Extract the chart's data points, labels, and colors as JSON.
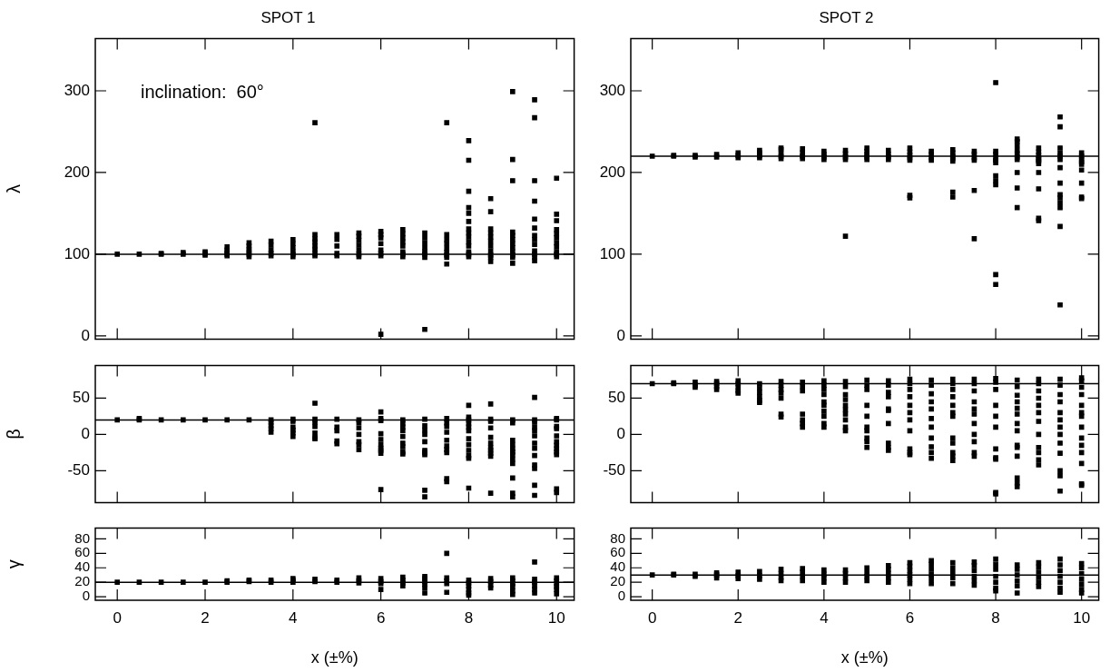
{
  "chart_data": [
    {
      "type": "scatter",
      "marker": "square",
      "title": "SPOT 1",
      "ylabel": "λ",
      "annotations": [
        "inclination:  60°"
      ],
      "xlim": [
        -0.5,
        10.4
      ],
      "xticks": [
        0,
        2,
        4,
        6,
        8,
        10
      ],
      "ylim": [
        -4,
        364
      ],
      "yticks": [
        0,
        100,
        200,
        300
      ],
      "tick_labels": "y",
      "ref_lines": [
        {
          "axis": "y",
          "value": 100,
          "color": "#000000"
        }
      ],
      "color": "#000000",
      "x": [
        0,
        0.5,
        1,
        1,
        1.5,
        1.5,
        2,
        2,
        2,
        2.5,
        2.5,
        2.5,
        2.5,
        2.5,
        3,
        3,
        3,
        3,
        3,
        3,
        3.5,
        3.5,
        3.5,
        3.5,
        3.5,
        4,
        4,
        4,
        4,
        4,
        4,
        4.5,
        4.5,
        4.5,
        4.5,
        4.5,
        4.5,
        4.5,
        4.5,
        5,
        5,
        5,
        5,
        5,
        5.5,
        5.5,
        5.5,
        5.5,
        5.5,
        5.5,
        5.5,
        6,
        6,
        6,
        6,
        6,
        6,
        6,
        6,
        6.5,
        6.5,
        6.5,
        6.5,
        6.5,
        6.5,
        6.5,
        6.5,
        7,
        7,
        7,
        7,
        7,
        7,
        7,
        7,
        7.5,
        7.5,
        7.5,
        7.5,
        7.5,
        7.5,
        7.5,
        7.5,
        7.5,
        8,
        8,
        8,
        8,
        8,
        8,
        8,
        8,
        8,
        8,
        8,
        8,
        8,
        8,
        8.5,
        8.5,
        8.5,
        8.5,
        8.5,
        8.5,
        8.5,
        8.5,
        8.5,
        8.5,
        8.5,
        9,
        9,
        9,
        9,
        9,
        9,
        9,
        9,
        9,
        9,
        9,
        9,
        9.5,
        9.5,
        9.5,
        9.5,
        9.5,
        9.5,
        9.5,
        9.5,
        9.5,
        9.5,
        9.5,
        9.5,
        9.5,
        10,
        10,
        10,
        10,
        10,
        10,
        10,
        10,
        10,
        10,
        10
      ],
      "values": [
        100,
        100,
        100,
        101,
        100,
        102,
        99,
        101,
        103,
        98,
        100,
        102,
        105,
        109,
        97,
        100,
        103,
        106,
        110,
        114,
        98,
        101,
        105,
        111,
        116,
        97,
        100,
        103,
        108,
        113,
        118,
        98,
        101,
        106,
        110,
        115,
        119,
        124,
        261,
        98,
        101,
        110,
        118,
        124,
        97,
        100,
        105,
        111,
        117,
        122,
        126,
        2,
        98,
        101,
        105,
        113,
        120,
        124,
        128,
        97,
        100,
        103,
        110,
        115,
        120,
        125,
        130,
        8,
        96,
        100,
        103,
        108,
        114,
        120,
        126,
        88,
        96,
        99,
        102,
        107,
        113,
        118,
        124,
        261,
        97,
        100,
        103,
        110,
        115,
        121,
        126,
        131,
        140,
        150,
        157,
        177,
        215,
        239,
        91,
        96,
        99,
        104,
        110,
        116,
        121,
        126,
        131,
        152,
        168,
        89,
        96,
        99,
        103,
        108,
        113,
        118,
        123,
        127,
        190,
        216,
        299,
        92,
        96,
        100,
        104,
        112,
        118,
        123,
        132,
        143,
        165,
        190,
        267,
        289,
        97,
        100,
        103,
        109,
        114,
        120,
        125,
        130,
        141,
        149,
        193
      ]
    },
    {
      "type": "scatter",
      "marker": "square",
      "title": "SPOT 2",
      "xlim": [
        -0.5,
        10.4
      ],
      "xticks": [
        0,
        2,
        4,
        6,
        8,
        10
      ],
      "ylim": [
        -4,
        364
      ],
      "yticks": [
        0,
        100,
        200,
        300
      ],
      "tick_labels": "y",
      "ref_lines": [
        {
          "axis": "y",
          "value": 220,
          "color": "#000000"
        }
      ],
      "color": "#000000",
      "x": [
        0,
        0.5,
        0.5,
        1,
        1,
        1.5,
        1.5,
        2,
        2,
        2,
        2.5,
        2.5,
        2.5,
        2.5,
        3,
        3,
        3,
        3,
        3,
        3.5,
        3.5,
        3.5,
        3.5,
        4,
        4,
        4,
        4,
        4.5,
        4.5,
        4.5,
        4.5,
        4.5,
        5,
        5,
        5,
        5,
        5,
        5.5,
        5.5,
        5.5,
        5.5,
        6,
        6,
        6,
        6,
        6,
        6,
        6,
        6.5,
        6.5,
        6.5,
        6.5,
        7,
        7,
        7,
        7,
        7,
        7,
        7,
        7.5,
        7.5,
        7.5,
        7.5,
        7.5,
        7.5,
        8,
        8,
        8,
        8,
        8,
        8,
        8,
        8,
        8,
        8,
        8,
        8.5,
        8.5,
        8.5,
        8.5,
        8.5,
        8.5,
        8.5,
        8.5,
        8.5,
        8.5,
        9,
        9,
        9,
        9,
        9,
        9,
        9,
        9,
        9,
        9,
        9,
        9.5,
        9.5,
        9.5,
        9.5,
        9.5,
        9.5,
        9.5,
        9.5,
        9.5,
        9.5,
        9.5,
        9.5,
        9.5,
        9.5,
        10,
        10,
        10,
        10,
        10,
        10,
        10,
        10,
        10
      ],
      "values": [
        220,
        220,
        221,
        219,
        221,
        219,
        222,
        218,
        221,
        224,
        218,
        221,
        224,
        227,
        217,
        220,
        223,
        228,
        230,
        217,
        220,
        224,
        229,
        216,
        219,
        222,
        226,
        122,
        216,
        219,
        223,
        227,
        216,
        219,
        222,
        226,
        230,
        216,
        219,
        222,
        227,
        169,
        172,
        215,
        218,
        221,
        225,
        230,
        215,
        218,
        222,
        226,
        170,
        176,
        214,
        217,
        220,
        224,
        228,
        119,
        178,
        215,
        218,
        222,
        226,
        63,
        75,
        185,
        190,
        196,
        212,
        215,
        218,
        222,
        226,
        310,
        157,
        181,
        200,
        216,
        219,
        223,
        227,
        233,
        238,
        241,
        141,
        144,
        180,
        200,
        211,
        214,
        216,
        217,
        221,
        225,
        230,
        38,
        134,
        157,
        163,
        169,
        173,
        187,
        206,
        216,
        220,
        224,
        230,
        256,
        268,
        168,
        170,
        187,
        203,
        210,
        213,
        216,
        220,
        224
      ]
    },
    {
      "type": "scatter",
      "marker": "square",
      "ylabel": "β",
      "xlim": [
        -0.5,
        10.4
      ],
      "xticks": [
        0,
        2,
        4,
        6,
        8,
        10
      ],
      "ylim": [
        -94,
        95
      ],
      "yticks": [
        -50,
        0,
        50
      ],
      "tick_labels": "y",
      "ref_lines": [
        {
          "axis": "y",
          "value": 20,
          "color": "#000000"
        }
      ],
      "color": "#000000",
      "x": [
        0,
        0.5,
        0.5,
        1,
        1.5,
        2,
        2.5,
        3,
        3.5,
        3.5,
        3.5,
        3.5,
        3.5,
        4,
        4,
        4,
        4,
        4,
        4,
        4.5,
        4.5,
        4.5,
        4.5,
        4.5,
        4.5,
        4.5,
        5,
        5,
        5,
        5,
        5,
        5.5,
        5.5,
        5.5,
        5.5,
        5.5,
        5.5,
        5.5,
        6,
        6,
        6,
        6,
        6,
        6,
        6,
        6,
        6,
        6,
        6.5,
        6.5,
        6.5,
        6.5,
        6.5,
        6.5,
        6.5,
        6.5,
        6.5,
        7,
        7,
        7,
        7,
        7,
        7,
        7,
        7,
        7,
        7,
        7.5,
        7.5,
        7.5,
        7.5,
        7.5,
        7.5,
        7.5,
        7.5,
        7.5,
        7.5,
        8,
        8,
        8,
        8,
        8,
        8,
        8,
        8,
        8,
        8,
        8,
        8,
        8.5,
        8.5,
        8.5,
        8.5,
        8.5,
        8.5,
        8.5,
        8.5,
        8.5,
        8.5,
        8.5,
        9,
        9,
        9,
        9,
        9,
        9,
        9,
        9,
        9,
        9,
        9,
        9,
        9.5,
        9.5,
        9.5,
        9.5,
        9.5,
        9.5,
        9.5,
        9.5,
        9.5,
        9.5,
        9.5,
        9.5,
        9.5,
        10,
        10,
        10,
        10,
        10,
        10,
        10,
        10,
        10,
        10,
        10,
        10
      ],
      "values": [
        20,
        20,
        22,
        20,
        20,
        20,
        20,
        20,
        3,
        8,
        12,
        17,
        20,
        -3,
        2,
        6,
        10,
        18,
        21,
        -6,
        -4,
        2,
        11,
        17,
        21,
        43,
        -13,
        -9,
        5,
        10,
        21,
        -21,
        -14,
        -10,
        0,
        9,
        16,
        20,
        -76,
        -26,
        -22,
        -19,
        -14,
        -7,
        1,
        19,
        22,
        31,
        -27,
        -24,
        -17,
        -12,
        -3,
        5,
        10,
        15,
        20,
        -86,
        -77,
        -28,
        -25,
        -22,
        -10,
        0,
        6,
        12,
        21,
        -65,
        -61,
        -25,
        -21,
        -16,
        -8,
        3,
        11,
        16,
        22,
        -74,
        -33,
        -29,
        -22,
        -14,
        -6,
        5,
        10,
        15,
        20,
        24,
        40,
        -81,
        -30,
        -26,
        -22,
        -18,
        -12,
        -4,
        9,
        18,
        21,
        42,
        -86,
        -81,
        -60,
        -40,
        -34,
        -28,
        -24,
        -20,
        -14,
        -8,
        16,
        20,
        -84,
        -70,
        -47,
        -42,
        -29,
        -19,
        -12,
        -2,
        5,
        10,
        17,
        20,
        51,
        -80,
        -75,
        -28,
        -24,
        -20,
        -15,
        -10,
        -2,
        8,
        11,
        20,
        22
      ]
    },
    {
      "type": "scatter",
      "marker": "square",
      "xlim": [
        -0.5,
        10.4
      ],
      "xticks": [
        0,
        2,
        4,
        6,
        8,
        10
      ],
      "ylim": [
        -94,
        95
      ],
      "yticks": [
        -50,
        0,
        50
      ],
      "tick_labels": "y",
      "ref_lines": [
        {
          "axis": "y",
          "value": 70,
          "color": "#000000"
        }
      ],
      "color": "#000000",
      "x": [
        0,
        0.5,
        0.5,
        1,
        1,
        1,
        1.5,
        1.5,
        1.5,
        1.5,
        2,
        2,
        2,
        2,
        2,
        2.5,
        2.5,
        2.5,
        2.5,
        2.5,
        2.5,
        3,
        3,
        3,
        3,
        3,
        3,
        3,
        3.5,
        3.5,
        3.5,
        3.5,
        3.5,
        3.5,
        3.5,
        4,
        4,
        4,
        4,
        4,
        4,
        4,
        4,
        4,
        4,
        4.5,
        4.5,
        4.5,
        4.5,
        4.5,
        4.5,
        4.5,
        4.5,
        4.5,
        4.5,
        5,
        5,
        5,
        5,
        5,
        5,
        5,
        5,
        5,
        5,
        5.5,
        5.5,
        5.5,
        5.5,
        5.5,
        5.5,
        5.5,
        5.5,
        5.5,
        5.5,
        6,
        6,
        6,
        6,
        6,
        6,
        6,
        6,
        6,
        6,
        6,
        6.5,
        6.5,
        6.5,
        6.5,
        6.5,
        6.5,
        6.5,
        6.5,
        6.5,
        6.5,
        6.5,
        7,
        7,
        7,
        7,
        7,
        7,
        7,
        7,
        7,
        7,
        7,
        7,
        7.5,
        7.5,
        7.5,
        7.5,
        7.5,
        7.5,
        7.5,
        7.5,
        7.5,
        7.5,
        7.5,
        8,
        8,
        8,
        8,
        8,
        8,
        8,
        8,
        8,
        8,
        8,
        8.5,
        8.5,
        8.5,
        8.5,
        8.5,
        8.5,
        8.5,
        8.5,
        8.5,
        8.5,
        8.5,
        8.5,
        8.5,
        8.5,
        9,
        9,
        9,
        9,
        9,
        9,
        9,
        9,
        9,
        9,
        9,
        9,
        9.5,
        9.5,
        9.5,
        9.5,
        9.5,
        9.5,
        9.5,
        9.5,
        9.5,
        9.5,
        9.5,
        9.5,
        9.5,
        10,
        10,
        10,
        10,
        10,
        10,
        10,
        10,
        10,
        10,
        10,
        10,
        10,
        10
      ],
      "values": [
        70,
        70,
        71,
        65,
        68,
        72,
        62,
        66,
        70,
        73,
        57,
        60,
        65,
        70,
        74,
        44,
        47,
        52,
        58,
        64,
        70,
        24,
        28,
        50,
        57,
        62,
        68,
        73,
        10,
        15,
        20,
        28,
        60,
        66,
        72,
        10,
        15,
        25,
        32,
        40,
        45,
        55,
        62,
        68,
        74,
        5,
        10,
        20,
        28,
        34,
        40,
        48,
        55,
        66,
        73,
        -18,
        -10,
        -5,
        5,
        10,
        25,
        40,
        62,
        68,
        75,
        -22,
        -18,
        -12,
        15,
        33,
        35,
        52,
        58,
        68,
        74,
        -28,
        -25,
        -20,
        5,
        20,
        30,
        40,
        52,
        62,
        70,
        76,
        -33,
        -25,
        -17,
        -5,
        10,
        22,
        35,
        45,
        56,
        68,
        75,
        -36,
        -30,
        -25,
        -12,
        -5,
        25,
        30,
        40,
        52,
        62,
        70,
        76,
        -30,
        -25,
        -10,
        0,
        15,
        28,
        35,
        45,
        60,
        70,
        76,
        -82,
        -80,
        -34,
        -32,
        -20,
        10,
        25,
        40,
        62,
        72,
        77,
        -72,
        -67,
        -60,
        -30,
        -18,
        -15,
        5,
        15,
        28,
        36,
        45,
        54,
        66,
        75,
        -42,
        -35,
        -25,
        -18,
        0,
        18,
        30,
        40,
        50,
        60,
        70,
        76,
        -78,
        -57,
        -50,
        -26,
        -12,
        0,
        10,
        20,
        30,
        45,
        55,
        68,
        76,
        -70,
        -68,
        -40,
        -25,
        -15,
        -5,
        10,
        25,
        30,
        40,
        55,
        65,
        74,
        78
      ]
    },
    {
      "type": "scatter",
      "marker": "square",
      "ylabel": "γ",
      "xlabel": "x (±%)",
      "xlim": [
        -0.5,
        10.4
      ],
      "xticks": [
        0,
        2,
        4,
        6,
        8,
        10
      ],
      "ylim": [
        -5,
        95
      ],
      "yticks": [
        0,
        20,
        40,
        60,
        80
      ],
      "ref_lines": [
        {
          "axis": "y",
          "value": 20,
          "color": "#000000"
        }
      ],
      "color": "#000000",
      "x": [
        0,
        0.5,
        1,
        1.5,
        2,
        2.5,
        2.5,
        3,
        3,
        3.5,
        3.5,
        4,
        4,
        4,
        4.5,
        4.5,
        5,
        5,
        5.5,
        5.5,
        5.5,
        6,
        6,
        6,
        6,
        6.5,
        6.5,
        6.5,
        6.5,
        7,
        7,
        7,
        7,
        7,
        7,
        7.5,
        7.5,
        7.5,
        7.5,
        7.5,
        8,
        8,
        8,
        8,
        8,
        8,
        8.5,
        8.5,
        8.5,
        8.5,
        9,
        9,
        9,
        9,
        9,
        9,
        9.5,
        9.5,
        9.5,
        9.5,
        9.5,
        9.5,
        10,
        10,
        10,
        10,
        10,
        10
      ],
      "values": [
        20,
        20,
        20,
        20,
        20,
        20,
        22,
        21,
        23,
        20,
        23,
        20,
        23,
        25,
        21,
        24,
        20,
        23,
        19,
        22,
        26,
        10,
        18,
        21,
        25,
        15,
        19,
        23,
        27,
        5,
        12,
        17,
        21,
        25,
        28,
        6,
        18,
        22,
        26,
        60,
        2,
        5,
        10,
        15,
        19,
        23,
        12,
        16,
        21,
        25,
        3,
        8,
        14,
        18,
        22,
        26,
        5,
        10,
        15,
        20,
        24,
        48,
        4,
        10,
        14,
        18,
        22,
        26
      ]
    },
    {
      "type": "scatter",
      "marker": "square",
      "xlabel": "x (±%)",
      "xlim": [
        -0.5,
        10.4
      ],
      "xticks": [
        0,
        2,
        4,
        6,
        8,
        10
      ],
      "ylim": [
        -5,
        95
      ],
      "yticks": [
        0,
        20,
        40,
        60,
        80
      ],
      "ref_lines": [
        {
          "axis": "y",
          "value": 30,
          "color": "#000000"
        }
      ],
      "color": "#000000",
      "x": [
        0,
        0.5,
        0.5,
        1,
        1,
        1.5,
        1.5,
        1.5,
        2,
        2,
        2,
        2.5,
        2.5,
        2.5,
        3,
        3,
        3,
        3,
        3.5,
        3.5,
        3.5,
        3.5,
        4,
        4,
        4,
        4,
        4.5,
        4.5,
        4.5,
        4.5,
        5,
        5,
        5,
        5,
        5.5,
        5.5,
        5.5,
        5.5,
        5.5,
        6,
        6,
        6,
        6,
        6,
        6,
        6.5,
        6.5,
        6.5,
        6.5,
        6.5,
        6.5,
        7,
        7,
        7,
        7,
        7,
        7.5,
        7.5,
        7.5,
        7.5,
        7.5,
        7.5,
        8,
        8,
        8,
        8,
        8,
        8,
        8,
        8.5,
        8.5,
        8.5,
        8.5,
        8.5,
        8.5,
        9,
        9,
        9,
        9,
        9,
        9,
        9.5,
        9.5,
        9.5,
        9.5,
        9.5,
        9.5,
        9.5,
        10,
        10,
        10,
        10,
        10,
        10,
        10
      ],
      "values": [
        30,
        30,
        31,
        28,
        31,
        26,
        30,
        33,
        25,
        29,
        34,
        24,
        29,
        35,
        22,
        27,
        32,
        38,
        22,
        28,
        34,
        39,
        20,
        26,
        31,
        37,
        20,
        26,
        32,
        37,
        22,
        28,
        33,
        40,
        20,
        26,
        32,
        38,
        43,
        18,
        24,
        30,
        36,
        42,
        47,
        18,
        25,
        31,
        38,
        45,
        50,
        18,
        26,
        33,
        40,
        47,
        16,
        22,
        28,
        36,
        43,
        48,
        8,
        12,
        20,
        28,
        38,
        45,
        52,
        5,
        15,
        22,
        30,
        38,
        44,
        14,
        20,
        27,
        34,
        41,
        47,
        6,
        12,
        20,
        28,
        36,
        44,
        52,
        5,
        10,
        17,
        24,
        32,
        40,
        46
      ]
    }
  ]
}
